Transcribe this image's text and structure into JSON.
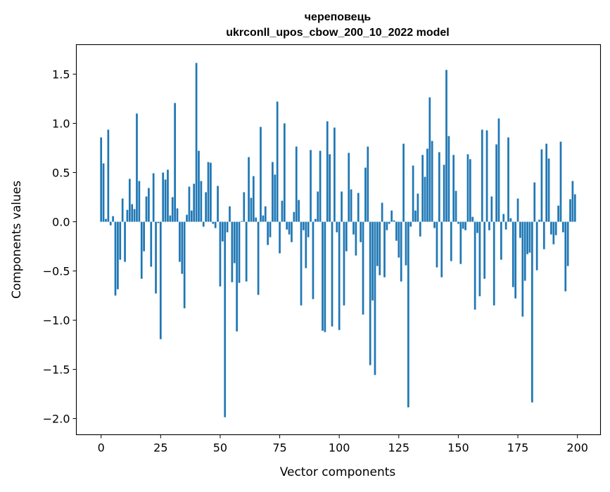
{
  "chart_data": {
    "type": "bar",
    "title": "череповець",
    "subtitle": "ukrconll_upos_cbow_200_10_2022 model",
    "xlabel": "Vector components",
    "ylabel": "Components values",
    "xlim": [
      -10.4,
      209.7
    ],
    "ylim": [
      -2.164,
      1.8
    ],
    "grid": false,
    "color": "#1f77b4",
    "xticks": [
      0,
      25,
      50,
      75,
      100,
      125,
      150,
      175,
      200
    ],
    "xtick_labels": [
      "0",
      "25",
      "50",
      "75",
      "100",
      "125",
      "150",
      "175",
      "200"
    ],
    "yticks": [
      -2.0,
      -1.5,
      -1.0,
      -0.5,
      0.0,
      0.5,
      1.0,
      1.5
    ],
    "ytick_labels": [
      "−2.0",
      "−1.5",
      "−1.0",
      "−0.5",
      "0.0",
      "0.5",
      "1.0",
      "1.5"
    ],
    "values": [
      0.857,
      0.593,
      0.029,
      0.936,
      -0.036,
      0.057,
      -0.75,
      -0.686,
      -0.386,
      0.236,
      -0.407,
      0.121,
      0.436,
      0.179,
      0.129,
      1.1,
      0.414,
      -0.579,
      -0.3,
      0.257,
      0.343,
      -0.457,
      0.493,
      -0.729,
      -0.014,
      -1.193,
      0.5,
      0.429,
      0.529,
      0.064,
      0.25,
      1.207,
      0.136,
      -0.407,
      -0.529,
      -0.879,
      0.071,
      0.357,
      0.114,
      0.386,
      1.614,
      0.721,
      0.414,
      -0.05,
      0.3,
      0.607,
      0.6,
      -0.021,
      -0.064,
      0.364,
      -0.657,
      -0.2,
      -1.986,
      -0.107,
      0.157,
      -0.614,
      -0.421,
      -1.114,
      -0.621,
      0.007,
      0.3,
      -0.607,
      0.657,
      0.243,
      0.464,
      0.043,
      -0.743,
      0.964,
      0.064,
      0.157,
      -0.236,
      -0.157,
      0.607,
      0.479,
      1.221,
      -0.321,
      0.214,
      1.0,
      -0.079,
      -0.129,
      -0.207,
      0.1,
      0.764,
      0.221,
      -0.85,
      -0.086,
      -0.471,
      -0.157,
      0.729,
      -0.786,
      0.029,
      0.307,
      0.721,
      -1.107,
      -1.121,
      1.021,
      0.686,
      -1.064,
      0.957,
      -0.107,
      -1.1,
      0.307,
      -0.85,
      -0.3,
      0.7,
      0.329,
      -0.129,
      -0.343,
      0.293,
      -0.207,
      -0.943,
      0.55,
      0.764,
      -1.457,
      -0.8,
      -1.557,
      -0.45,
      -0.543,
      0.193,
      -0.564,
      -0.086,
      -0.021,
      0.114,
      0.014,
      -0.193,
      -0.364,
      -0.607,
      0.793,
      -0.443,
      -1.886,
      -0.05,
      0.571,
      0.114,
      0.286,
      -0.15,
      0.679,
      0.457,
      0.743,
      1.264,
      0.821,
      -0.064,
      -0.464,
      0.707,
      -0.564,
      0.579,
      1.543,
      0.871,
      -0.4,
      0.679,
      0.314,
      -0.021,
      -0.429,
      -0.071,
      -0.086,
      0.686,
      0.636,
      0.05,
      -0.893,
      -0.114,
      -0.757,
      0.936,
      -0.579,
      0.929,
      -0.086,
      0.257,
      -0.85,
      0.786,
      1.05,
      -0.386,
      0.079,
      -0.079,
      0.857,
      0.036,
      -0.664,
      -0.779,
      0.236,
      -0.164,
      -0.964,
      -0.6,
      -0.329,
      -0.314,
      -1.836,
      0.4,
      -0.493,
      0.021,
      0.736,
      -0.279,
      0.793,
      0.643,
      -0.129,
      -0.229,
      -0.136,
      0.164,
      0.814,
      -0.107,
      -0.707,
      -0.45,
      0.229,
      0.414,
      0.279
    ]
  }
}
